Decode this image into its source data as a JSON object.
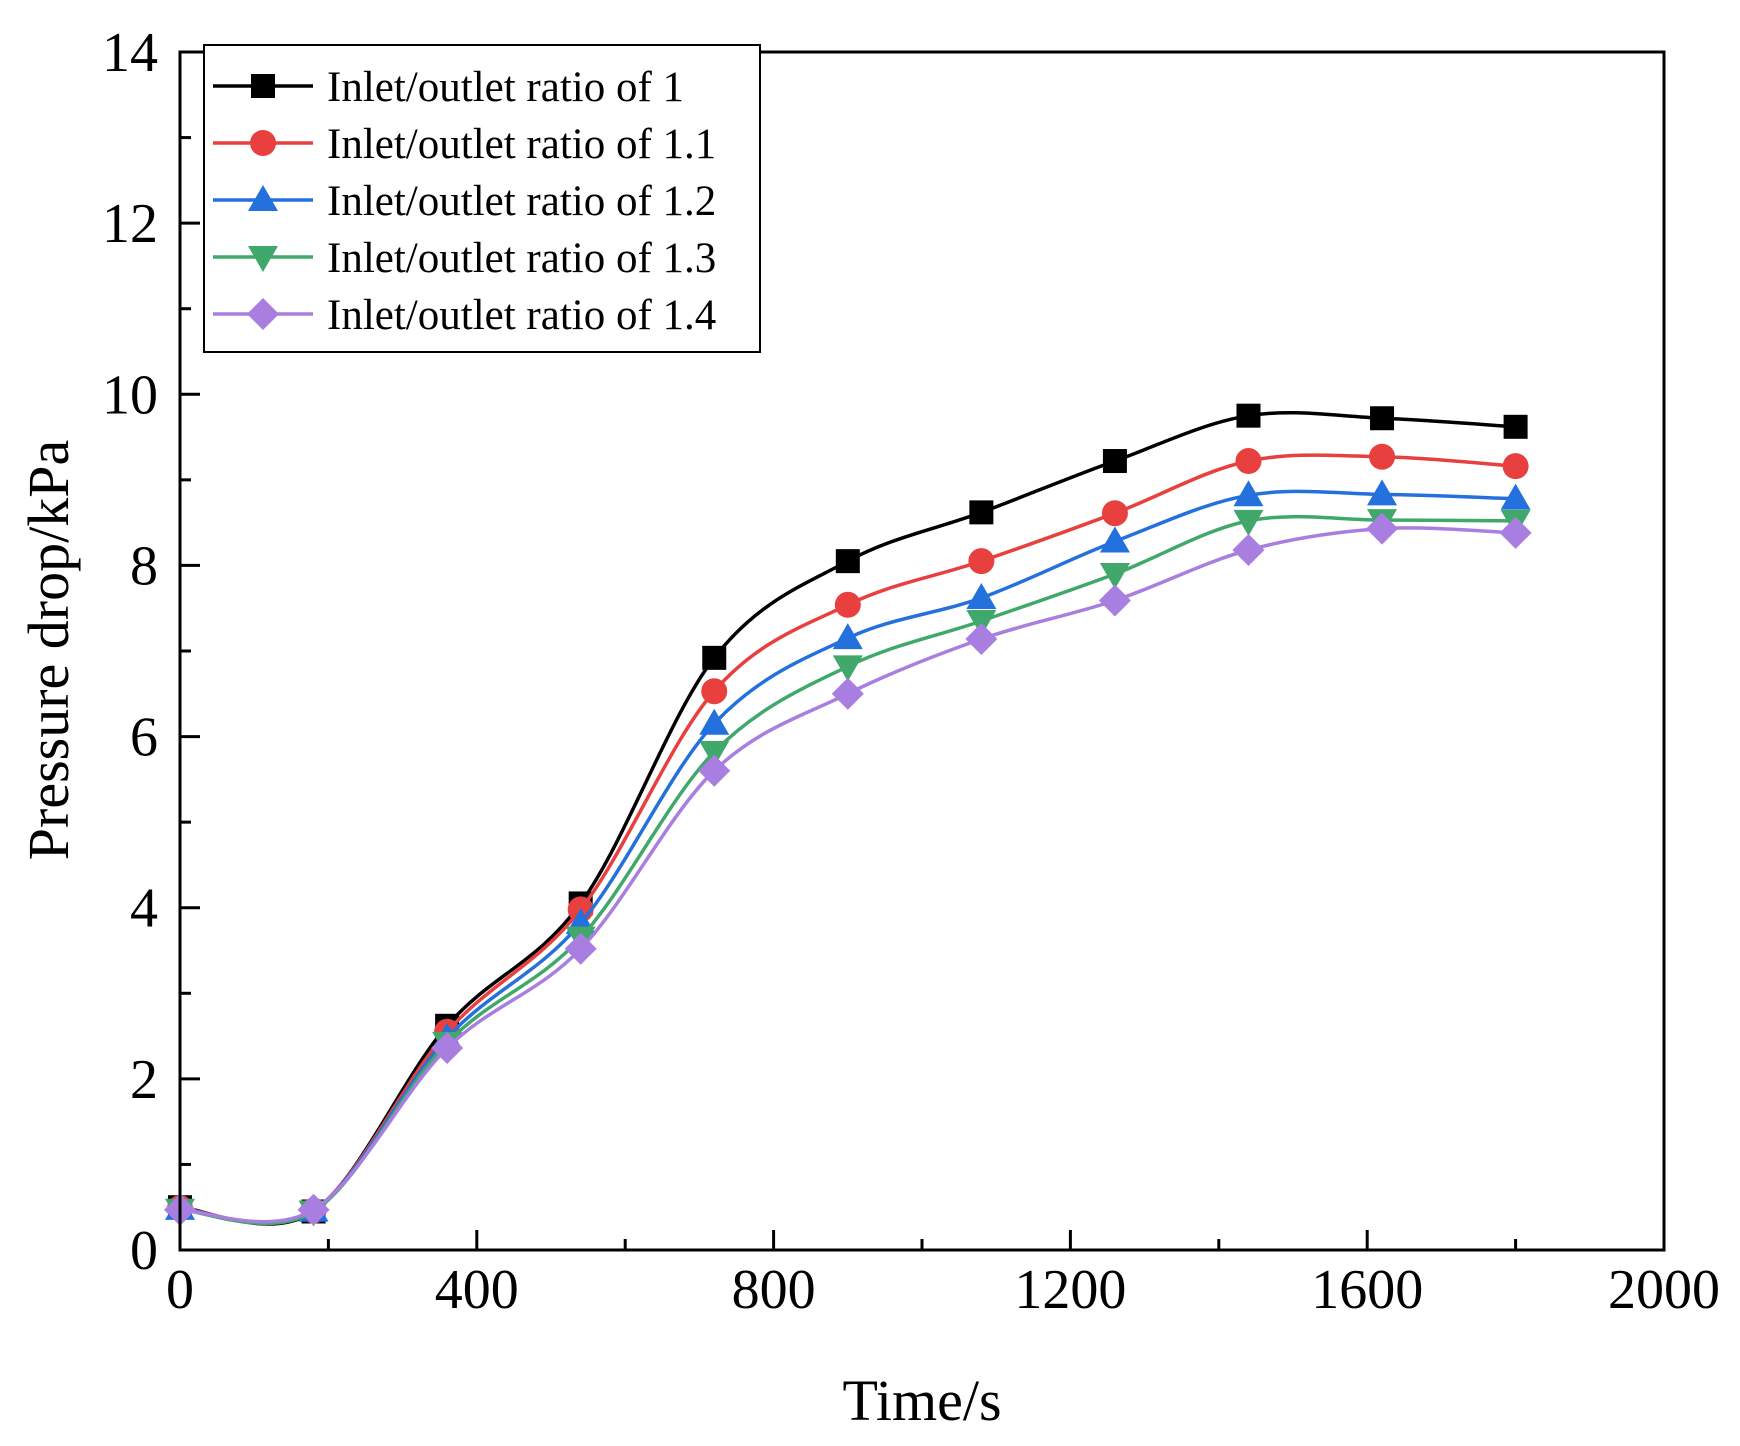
{
  "chart_data": {
    "type": "line",
    "title": "",
    "xlabel": "Time/s",
    "ylabel": "Pressure drop/kPa",
    "xlim": [
      0,
      2000
    ],
    "ylim": [
      0,
      14
    ],
    "xticks": [
      0,
      400,
      800,
      1200,
      1600,
      2000
    ],
    "yticks": [
      0,
      2,
      4,
      6,
      8,
      10,
      12,
      14
    ],
    "x_tick_labels": [
      "0",
      "400",
      "800",
      "1200",
      "1600",
      "2000"
    ],
    "y_tick_labels": [
      "0",
      "2",
      "4",
      "6",
      "8",
      "10",
      "12",
      "14"
    ],
    "grid": false,
    "legend_position": "top-left",
    "x": [
      0,
      180,
      360,
      540,
      720,
      900,
      1080,
      1260,
      1440,
      1620,
      1800
    ],
    "series": [
      {
        "name": "Inlet/outlet ratio of 1",
        "color": "#000000",
        "marker": "square",
        "values": [
          0.5,
          0.45,
          2.62,
          4.05,
          6.92,
          8.05,
          8.62,
          9.22,
          9.75,
          9.72,
          9.62
        ]
      },
      {
        "name": "Inlet/outlet ratio of 1.1",
        "color": "#e8403f",
        "marker": "circle",
        "values": [
          0.49,
          0.46,
          2.55,
          3.98,
          6.53,
          7.54,
          8.05,
          8.61,
          9.22,
          9.27,
          9.16
        ]
      },
      {
        "name": "Inlet/outlet ratio of 1.2",
        "color": "#2470dc",
        "marker": "triangle-up",
        "values": [
          0.48,
          0.46,
          2.48,
          3.82,
          6.15,
          7.15,
          7.62,
          8.28,
          8.82,
          8.83,
          8.78
        ]
      },
      {
        "name": "Inlet/outlet ratio of 1.3",
        "color": "#3fa86a",
        "marker": "triangle-down",
        "values": [
          0.47,
          0.45,
          2.42,
          3.65,
          5.82,
          6.82,
          7.35,
          7.9,
          8.52,
          8.53,
          8.52
        ]
      },
      {
        "name": "Inlet/outlet ratio of 1.4",
        "color": "#a87ee0",
        "marker": "diamond",
        "values": [
          0.47,
          0.47,
          2.36,
          3.52,
          5.6,
          6.5,
          7.14,
          7.59,
          8.18,
          8.43,
          8.38
        ]
      }
    ]
  }
}
